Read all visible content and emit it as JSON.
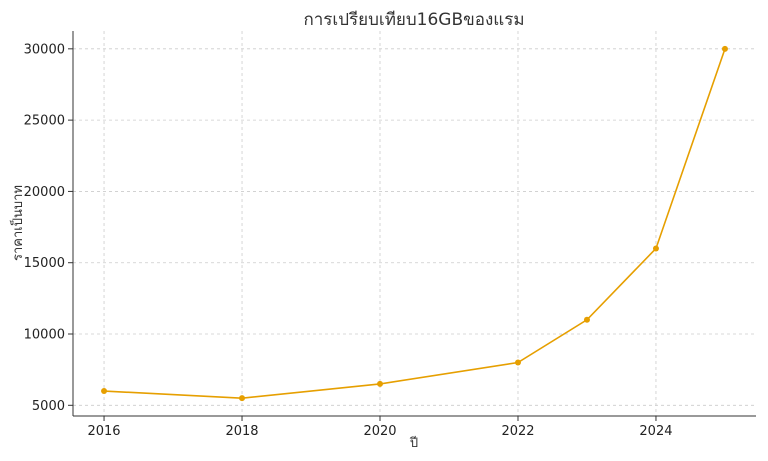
{
  "chart_data": {
    "type": "line",
    "title": "การเปรียบเทียบ16GBของแรม",
    "xlabel": "ปี",
    "ylabel": "ราคาเป็นบาท",
    "x": [
      2016,
      2018,
      2020,
      2022,
      2023,
      2024,
      2025
    ],
    "series": [
      {
        "values": [
          6000,
          5500,
          6500,
          8000,
          11000,
          16000,
          30000
        ]
      }
    ],
    "xticks": [
      2016,
      2018,
      2020,
      2022,
      2024
    ],
    "yticks": [
      5000,
      10000,
      15000,
      20000,
      25000,
      30000
    ],
    "xlim": [
      2015.55,
      2025.45
    ],
    "ylim": [
      4250,
      31250
    ],
    "grid": true,
    "colors": {
      "line": "#E69F00",
      "grid": "#cccccc",
      "axis": "#333333"
    }
  }
}
